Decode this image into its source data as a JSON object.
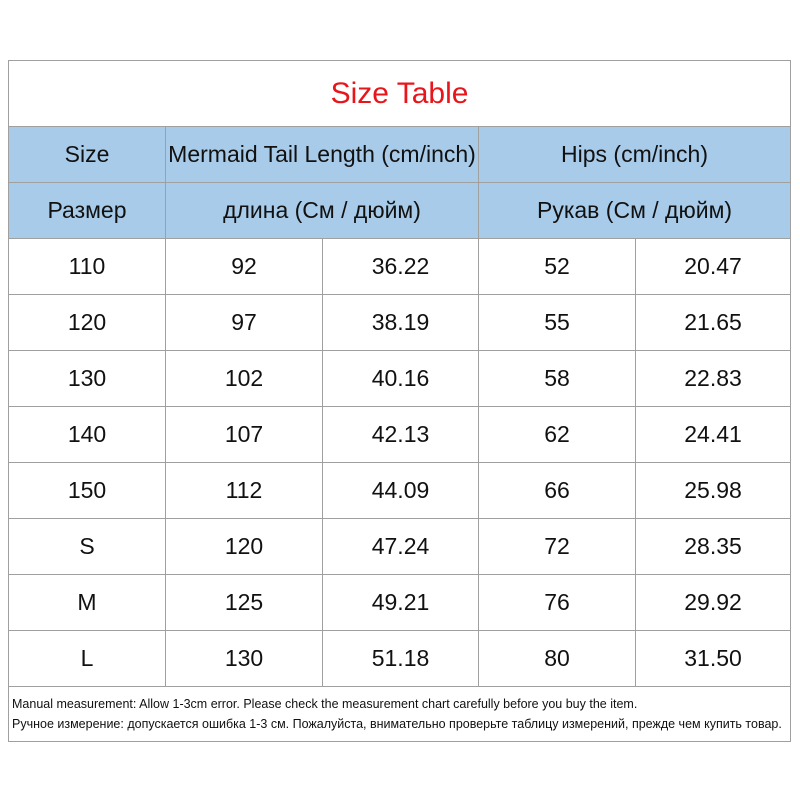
{
  "title": "Size Table",
  "header": [
    [
      "Size",
      "Mermaid Tail Length (cm/inch)",
      "Hips (cm/inch)"
    ],
    [
      "Размер",
      "длина (См / дюйм)",
      "Рукав (См / дюйм)"
    ]
  ],
  "rows": [
    [
      "110",
      "92",
      "36.22",
      "52",
      "20.47"
    ],
    [
      "120",
      "97",
      "38.19",
      "55",
      "21.65"
    ],
    [
      "130",
      "102",
      "40.16",
      "58",
      "22.83"
    ],
    [
      "140",
      "107",
      "42.13",
      "62",
      "24.41"
    ],
    [
      "150",
      "112",
      "44.09",
      "66",
      "25.98"
    ],
    [
      "S",
      "120",
      "47.24",
      "72",
      "28.35"
    ],
    [
      "M",
      "125",
      "49.21",
      "76",
      "29.92"
    ],
    [
      "L",
      "130",
      "51.18",
      "80",
      "31.50"
    ]
  ],
  "notes": [
    "Manual measurement: Allow 1-3cm error. Please check the measurement chart carefully before you buy the item.",
    "Ручное измерение: допускается ошибка 1-3 см. Пожалуйста, внимательно проверьте таблицу измерений, прежде чем купить товар."
  ]
}
